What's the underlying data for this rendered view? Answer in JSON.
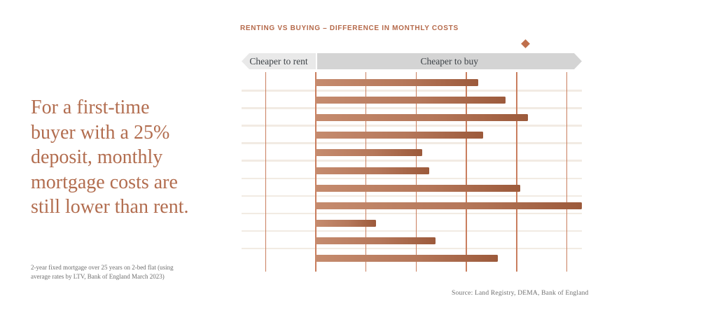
{
  "headline": {
    "lines": [
      "For a first-time",
      "buyer with a 25%",
      "deposit, monthly",
      "mortgage costs are",
      "still lower than rent."
    ],
    "color": "#b26d4f"
  },
  "footnote": {
    "lines": [
      "2-year fixed mortgage over 25 years on 2-bed flat (using",
      "average rates by LTV, Bank of England March 2023)"
    ]
  },
  "source_text": "Source: Land Registry, DEMA, Bank of England",
  "chart": {
    "title": "RENTING VS BUYING – DIFFERENCE IN MONTHLY COSTS",
    "axis_labels": {
      "left": "Cheaper to rent",
      "right": "Cheaper to buy"
    },
    "colors": {
      "bar_gradient_start": "#c58b6e",
      "bar_gradient_end": "#9c5a3b",
      "gridline": "#c97e5e",
      "row_separator": "#f2ebe3",
      "title": "#b5694a",
      "header_rent_bg": "#e9e9e9",
      "header_buy_bg": "#d4d4d4",
      "header_text": "#3d4247",
      "diamond": "#bf6f4c",
      "headline_text": "#b26d4f",
      "footnote_text": "#6f6f6f"
    }
  },
  "chart_data": {
    "type": "bar",
    "orientation": "horizontal",
    "title": "RENTING VS BUYING – DIFFERENCE IN MONTHLY COSTS",
    "note": "Rows are unlabeled in the image; values estimated in unlabeled gridline units where 0 = boundary between 'Cheaper to rent' and 'Cheaper to buy'.",
    "categories": [
      "",
      "",
      "",
      "",
      "",
      "",
      "",
      "",
      "",
      "",
      ""
    ],
    "values": [
      3.24,
      3.78,
      4.23,
      3.33,
      2.12,
      2.26,
      4.07,
      5.3,
      1.2,
      2.38,
      3.63
    ],
    "x_gridlines": [
      -1,
      0,
      1,
      2,
      3,
      4,
      5
    ],
    "xlim": [
      -1.48,
      5.3
    ],
    "grid": true,
    "tick_labels_visible": false,
    "zero_boundary_labels": {
      "negative": "Cheaper to rent",
      "positive": "Cheaper to buy"
    },
    "marker": {
      "shape": "diamond",
      "x": 4.18,
      "position": "above axis header"
    }
  }
}
